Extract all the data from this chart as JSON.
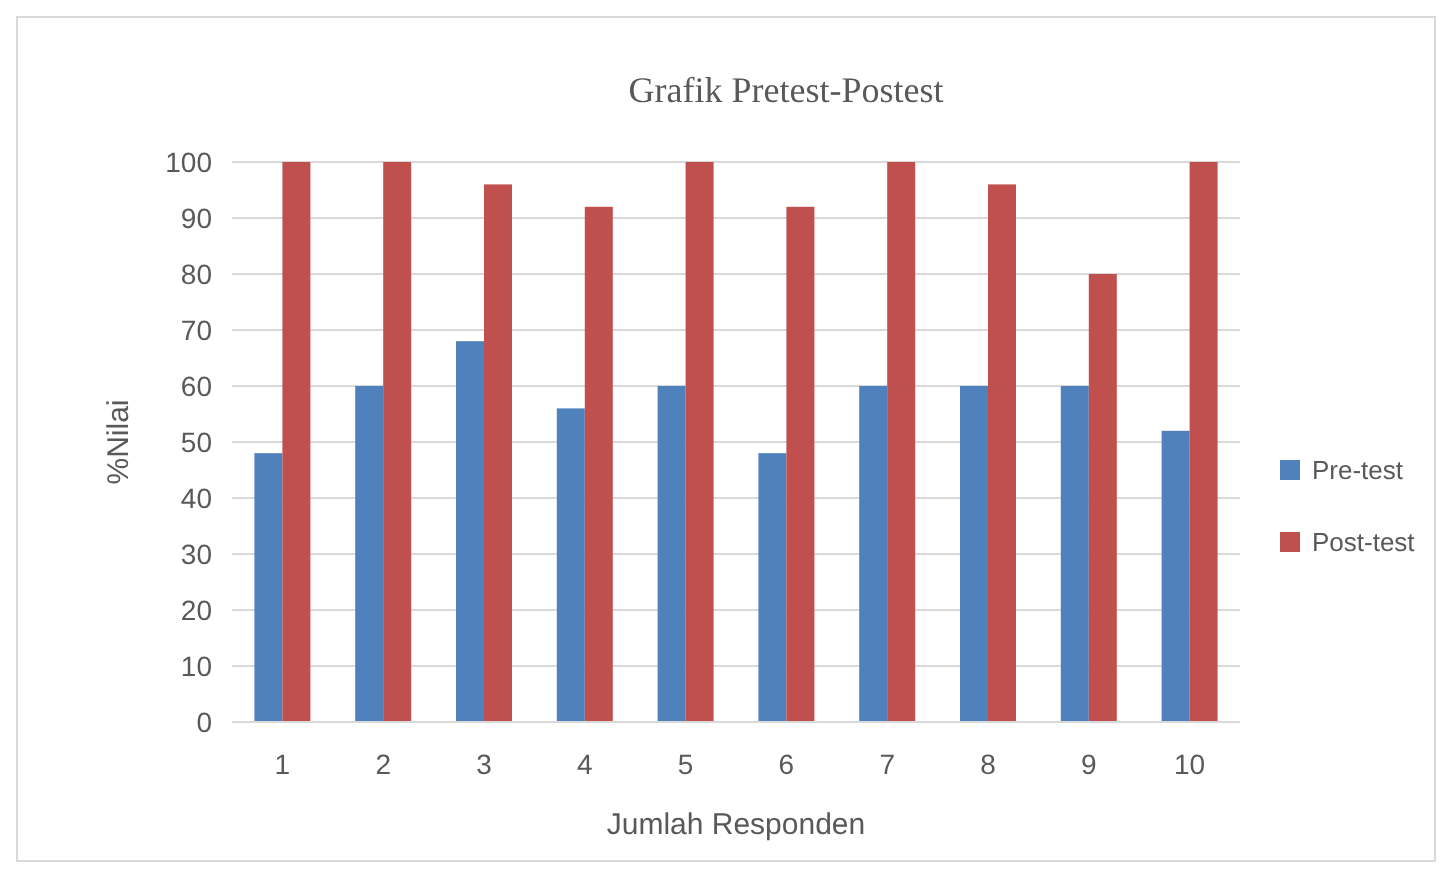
{
  "chart_data": {
    "type": "bar",
    "title": "Grafik Pretest-Postest",
    "xlabel": "Jumlah Responden",
    "ylabel": "%Nilai",
    "categories": [
      "1",
      "2",
      "3",
      "4",
      "5",
      "6",
      "7",
      "8",
      "9",
      "10"
    ],
    "series": [
      {
        "name": "Pre-test",
        "color": "#4f81bd",
        "values": [
          48,
          60,
          68,
          56,
          60,
          48,
          60,
          60,
          60,
          52
        ]
      },
      {
        "name": "Post-test",
        "color": "#c0504d",
        "values": [
          100,
          100,
          96,
          92,
          100,
          92,
          100,
          96,
          80,
          100
        ]
      }
    ],
    "ylim": [
      0,
      100
    ],
    "yticks": [
      0,
      10,
      20,
      30,
      40,
      50,
      60,
      70,
      80,
      90,
      100
    ],
    "grid": "y",
    "legend": "right"
  }
}
